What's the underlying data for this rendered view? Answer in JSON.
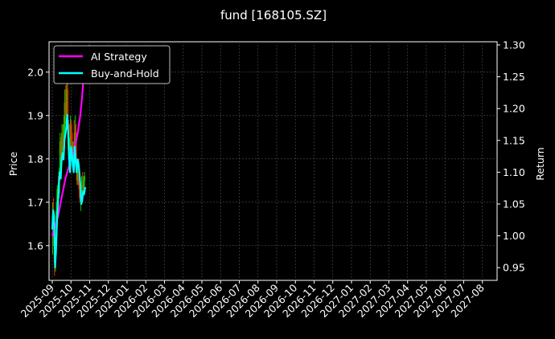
{
  "chart_data": {
    "type": "line",
    "title": "fund [168105.SZ]",
    "ylabel": "Price",
    "y2label": "Return",
    "ylim": [
      1.52,
      2.07
    ],
    "y2lim": [
      0.93,
      1.305
    ],
    "yticks": [
      "1.6",
      "1.7",
      "1.8",
      "1.9",
      "2.0"
    ],
    "y2ticks": [
      "0.95",
      "1.00",
      "1.05",
      "1.10",
      "1.15",
      "1.20",
      "1.25",
      "1.30"
    ],
    "xticks": [
      "2025-09",
      "2025-10",
      "2025-11",
      "2025-12",
      "2026-01",
      "2026-02",
      "2026-03",
      "2026-04",
      "2026-05",
      "2026-06",
      "2026-07",
      "2026-08",
      "2026-09",
      "2026-10",
      "2026-11",
      "2026-12",
      "2027-01",
      "2027-02",
      "2027-03",
      "2027-04",
      "2027-05",
      "2027-06",
      "2027-07",
      "2027-08"
    ],
    "legend_position": "top-left",
    "grid": true,
    "series": [
      {
        "name": "AI Strategy",
        "color": "#ff00ff",
        "axis": "right",
        "points": [
          [
            0.0,
            1.0
          ],
          [
            0.1,
            1.01
          ],
          [
            0.2,
            1.02
          ],
          [
            0.3,
            1.03
          ],
          [
            0.4,
            1.045
          ],
          [
            0.5,
            1.06
          ],
          [
            0.6,
            1.075
          ],
          [
            0.7,
            1.09
          ],
          [
            0.8,
            1.1
          ],
          [
            0.9,
            1.11
          ],
          [
            1.0,
            1.12
          ],
          [
            1.1,
            1.13
          ],
          [
            1.2,
            1.14
          ],
          [
            1.35,
            1.16
          ],
          [
            1.5,
            1.19
          ],
          [
            1.6,
            1.22
          ],
          [
            1.7,
            1.26
          ],
          [
            1.8,
            1.28
          ],
          [
            1.9,
            1.29
          ],
          [
            2.0,
            1.3
          ]
        ]
      },
      {
        "name": "Buy-and-Hold",
        "color": "#00ffff",
        "axis": "right",
        "points": [
          [
            0.0,
            1.01
          ],
          [
            0.05,
            1.04
          ],
          [
            0.1,
            1.03
          ],
          [
            0.15,
            0.95
          ],
          [
            0.2,
            0.98
          ],
          [
            0.25,
            1.02
          ],
          [
            0.3,
            1.05
          ],
          [
            0.35,
            1.08
          ],
          [
            0.4,
            1.1
          ],
          [
            0.45,
            1.09
          ],
          [
            0.5,
            1.12
          ],
          [
            0.55,
            1.13
          ],
          [
            0.6,
            1.12
          ],
          [
            0.65,
            1.15
          ],
          [
            0.7,
            1.16
          ],
          [
            0.75,
            1.17
          ],
          [
            0.8,
            1.19
          ],
          [
            0.85,
            1.16
          ],
          [
            0.9,
            1.12
          ],
          [
            0.95,
            1.1
          ],
          [
            1.0,
            1.14
          ],
          [
            1.05,
            1.13
          ],
          [
            1.1,
            1.11
          ],
          [
            1.15,
            1.1
          ],
          [
            1.2,
            1.14
          ],
          [
            1.25,
            1.12
          ],
          [
            1.3,
            1.1
          ],
          [
            1.35,
            1.12
          ],
          [
            1.4,
            1.115
          ],
          [
            1.45,
            1.1
          ],
          [
            1.5,
            1.08
          ],
          [
            1.55,
            1.05
          ],
          [
            1.6,
            1.055
          ],
          [
            1.65,
            1.07
          ],
          [
            1.7,
            1.065
          ],
          [
            1.75,
            1.075
          ],
          [
            1.8,
            1.076
          ]
        ]
      }
    ],
    "candles": {
      "axis": "left",
      "up_color": "#00cc00",
      "down_color": "#ff2200",
      "items": [
        [
          0.02,
          1.66,
          1.7,
          1.58,
          1.67
        ],
        [
          0.07,
          1.68,
          1.71,
          1.6,
          1.64
        ],
        [
          0.12,
          1.64,
          1.66,
          1.53,
          1.56
        ],
        [
          0.17,
          1.57,
          1.62,
          1.54,
          1.61
        ],
        [
          0.22,
          1.6,
          1.7,
          1.58,
          1.68
        ],
        [
          0.27,
          1.68,
          1.74,
          1.66,
          1.73
        ],
        [
          0.32,
          1.73,
          1.76,
          1.7,
          1.72
        ],
        [
          0.37,
          1.72,
          1.78,
          1.71,
          1.77
        ],
        [
          0.42,
          1.77,
          1.86,
          1.76,
          1.84
        ],
        [
          0.47,
          1.84,
          1.85,
          1.78,
          1.8
        ],
        [
          0.52,
          1.8,
          1.88,
          1.79,
          1.86
        ],
        [
          0.57,
          1.86,
          1.88,
          1.82,
          1.84
        ],
        [
          0.62,
          1.84,
          1.9,
          1.83,
          1.88
        ],
        [
          0.67,
          1.88,
          1.96,
          1.86,
          1.93
        ],
        [
          0.72,
          1.93,
          1.97,
          1.88,
          1.9
        ],
        [
          0.77,
          1.9,
          1.99,
          1.89,
          1.96
        ],
        [
          0.82,
          1.96,
          1.99,
          1.86,
          1.88
        ],
        [
          0.87,
          1.88,
          1.89,
          1.8,
          1.82
        ],
        [
          0.92,
          1.82,
          1.85,
          1.78,
          1.83
        ],
        [
          0.97,
          1.83,
          1.9,
          1.82,
          1.88
        ],
        [
          1.02,
          1.88,
          1.89,
          1.82,
          1.84
        ],
        [
          1.07,
          1.84,
          1.86,
          1.79,
          1.8
        ],
        [
          1.12,
          1.8,
          1.84,
          1.78,
          1.83
        ],
        [
          1.17,
          1.83,
          1.89,
          1.8,
          1.82
        ],
        [
          1.22,
          1.82,
          1.9,
          1.81,
          1.86
        ],
        [
          1.27,
          1.86,
          1.88,
          1.78,
          1.79
        ],
        [
          1.32,
          1.79,
          1.8,
          1.74,
          1.75
        ],
        [
          1.37,
          1.75,
          1.79,
          1.74,
          1.78
        ],
        [
          1.42,
          1.78,
          1.8,
          1.73,
          1.74
        ],
        [
          1.47,
          1.74,
          1.75,
          1.7,
          1.71
        ],
        [
          1.52,
          1.71,
          1.73,
          1.68,
          1.72
        ],
        [
          1.57,
          1.72,
          1.76,
          1.71,
          1.74
        ],
        [
          1.62,
          1.74,
          1.77,
          1.72,
          1.73
        ],
        [
          1.67,
          1.73,
          1.76,
          1.72,
          1.75
        ],
        [
          1.72,
          1.75,
          1.77,
          1.73,
          1.76
        ]
      ]
    }
  }
}
